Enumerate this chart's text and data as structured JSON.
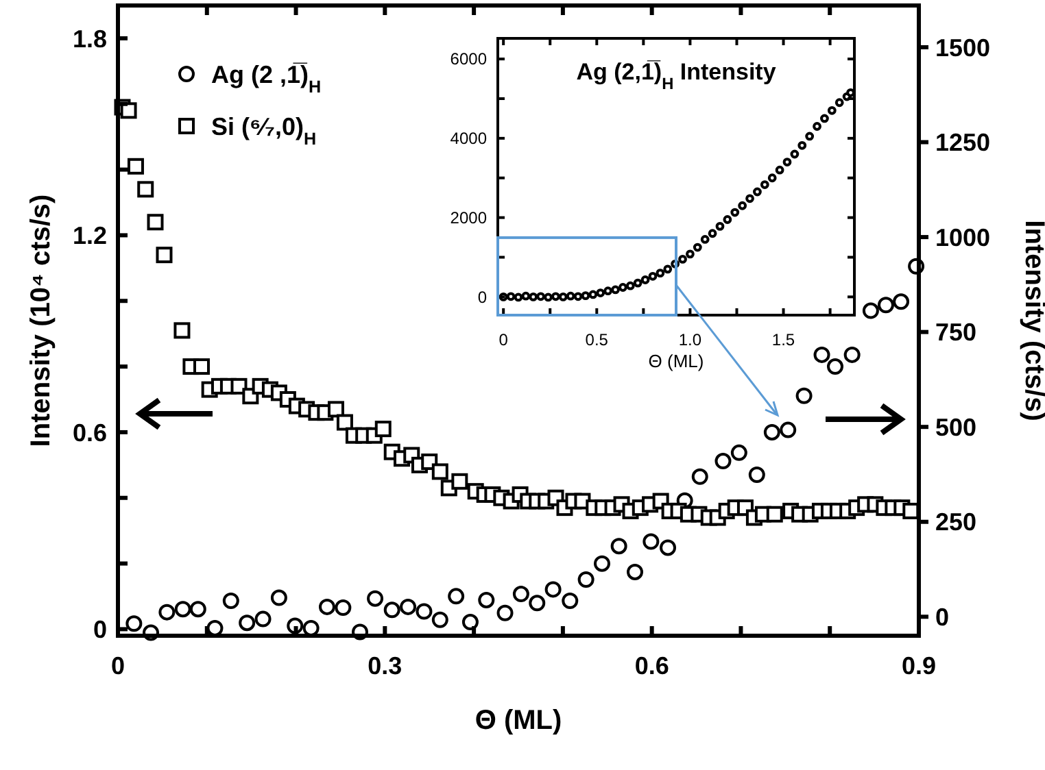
{
  "chart_data": [
    {
      "type": "scatter",
      "xlabel": "Θ (ML)",
      "ylabel": "Intensity (10⁴ cts/s)",
      "y2label": "Intensity (cts/s)",
      "legend": "top left",
      "xlim": [
        0,
        0.9
      ],
      "xticks": [
        0,
        {
          "value": 0.1,
          "label": null
        },
        {
          "value": 0.2,
          "label": null
        },
        0.3,
        {
          "value": 0.4,
          "label": null
        },
        {
          "value": 0.5,
          "label": null
        },
        0.6,
        {
          "value": 0.7,
          "label": null
        },
        {
          "value": 0.8,
          "label": null
        },
        0.9
      ],
      "ylim": [
        -0.02,
        1.9
      ],
      "yticks": [
        0,
        {
          "value": 0.2,
          "label": null
        },
        {
          "value": 0.4,
          "label": null
        },
        0.6,
        {
          "value": 0.8,
          "label": null
        },
        {
          "value": 1.0,
          "label": null
        },
        1.2,
        {
          "value": 1.4,
          "label": null
        },
        {
          "value": 1.6,
          "label": null
        },
        1.8
      ],
      "y2lim": [
        -50,
        1610
      ],
      "y2ticks": [
        0,
        250,
        500,
        750,
        1000,
        1250,
        1500
      ],
      "series": [
        {
          "name": "Ag (2 ,1̅)$_{H}$",
          "color": "#000000",
          "marker": "circle",
          "axis": "y2",
          "x": [
            0.018,
            0.037,
            0.055,
            0.073,
            0.09,
            0.109,
            0.127,
            0.145,
            0.163,
            0.181,
            0.199,
            0.217,
            0.235,
            0.253,
            0.272,
            0.289,
            0.308,
            0.326,
            0.344,
            0.362,
            0.38,
            0.396,
            0.414,
            0.435,
            0.453,
            0.471,
            0.489,
            0.508,
            0.526,
            0.544,
            0.563,
            0.581,
            0.599,
            0.618,
            0.637,
            0.654,
            0.68,
            0.698,
            0.718,
            0.735,
            0.753,
            0.771,
            0.791,
            0.806,
            0.825,
            0.846,
            0.863,
            0.88,
            0.897
          ],
          "values": [
            -18,
            -42,
            12,
            20,
            20,
            -30,
            42,
            -16,
            -6,
            50,
            -24,
            -30,
            26,
            24,
            -40,
            48,
            18,
            26,
            14,
            -8,
            54,
            -14,
            44,
            10,
            60,
            36,
            72,
            42,
            98,
            140,
            186,
            118,
            198,
            182,
            306,
            369,
            410,
            432,
            374,
            486,
            492,
            582,
            690,
            659,
            690,
            806,
            821,
            830,
            923
          ]
        },
        {
          "name": "Si (⁶⁄₇,0)$_{H}$",
          "color": "#000000",
          "marker": "square",
          "x": [
            0.005,
            0.012,
            0.02,
            0.031,
            0.042,
            0.052,
            0.072,
            0.082,
            0.094,
            0.103,
            0.114,
            0.124,
            0.136,
            0.149,
            0.16,
            0.171,
            0.181,
            0.191,
            0.201,
            0.212,
            0.223,
            0.233,
            0.245,
            0.255,
            0.265,
            0.276,
            0.288,
            0.298,
            0.308,
            0.319,
            0.33,
            0.339,
            0.35,
            0.362,
            0.372,
            0.384,
            0.402,
            0.412,
            0.421,
            0.431,
            0.442,
            0.452,
            0.461,
            0.471,
            0.481,
            0.492,
            0.502,
            0.512,
            0.522,
            0.535,
            0.545,
            0.556,
            0.566,
            0.576,
            0.587,
            0.598,
            0.61,
            0.62,
            0.63,
            0.641,
            0.653,
            0.664,
            0.674,
            0.684,
            0.694,
            0.705,
            0.715,
            0.725,
            0.738,
            0.756,
            0.766,
            0.778,
            0.789,
            0.799,
            0.809,
            0.82,
            0.83,
            0.84,
            0.851,
            0.861,
            0.871,
            0.881,
            0.891
          ],
          "values": [
            1.59,
            1.58,
            1.41,
            1.34,
            1.24,
            1.14,
            0.91,
            0.8,
            0.8,
            0.73,
            0.74,
            0.74,
            0.74,
            0.71,
            0.74,
            0.73,
            0.72,
            0.7,
            0.68,
            0.67,
            0.66,
            0.66,
            0.67,
            0.63,
            0.59,
            0.59,
            0.59,
            0.61,
            0.54,
            0.52,
            0.53,
            0.5,
            0.51,
            0.48,
            0.43,
            0.45,
            0.42,
            0.41,
            0.41,
            0.4,
            0.39,
            0.41,
            0.39,
            0.39,
            0.39,
            0.4,
            0.37,
            0.39,
            0.39,
            0.37,
            0.37,
            0.37,
            0.38,
            0.36,
            0.37,
            0.38,
            0.39,
            0.36,
            0.36,
            0.35,
            0.35,
            0.34,
            0.34,
            0.36,
            0.37,
            0.37,
            0.34,
            0.35,
            0.35,
            0.36,
            0.35,
            0.35,
            0.36,
            0.36,
            0.36,
            0.36,
            0.37,
            0.38,
            0.38,
            0.37,
            0.37,
            0.37,
            0.36
          ]
        }
      ]
    },
    {
      "type": "scatter",
      "title": "Ag (2,1̅)$_{H}$ Intensity",
      "xlabel": "Θ (ML)",
      "xlim": [
        -0.03,
        1.88
      ],
      "xticks": [
        0,
        {
          "value": 0.25,
          "label": null
        },
        0.5,
        {
          "value": 0.75,
          "label": null
        },
        {
          "value": 1,
          "label": "1.0"
        },
        {
          "value": 1.25,
          "label": null
        },
        1.5,
        {
          "value": 1.75,
          "label": null
        }
      ],
      "ylim": [
        -460,
        6520
      ],
      "yticks": [
        0,
        {
          "value": 1000,
          "label": null
        },
        2000,
        {
          "value": 3000,
          "label": null
        },
        4000,
        {
          "value": 5000,
          "label": null
        },
        6000
      ],
      "series": [
        {
          "color": "#000000",
          "marker": "circle",
          "x": [
            0,
            0.04,
            0.08,
            0.12,
            0.16,
            0.2,
            0.24,
            0.28,
            0.32,
            0.36,
            0.4,
            0.44,
            0.48,
            0.52,
            0.56,
            0.6,
            0.64,
            0.68,
            0.72,
            0.76,
            0.8,
            0.84,
            0.88,
            0.92,
            0.96,
            1.0,
            1.04,
            1.08,
            1.12,
            1.16,
            1.2,
            1.24,
            1.28,
            1.32,
            1.36,
            1.4,
            1.44,
            1.48,
            1.52,
            1.56,
            1.6,
            1.64,
            1.68,
            1.72,
            1.76,
            1.8,
            1.84,
            1.86
          ],
          "values": [
            0,
            10,
            -10,
            20,
            0,
            10,
            -10,
            10,
            0,
            20,
            10,
            30,
            60,
            100,
            150,
            180,
            240,
            280,
            350,
            430,
            520,
            600,
            700,
            830,
            950,
            1080,
            1250,
            1450,
            1600,
            1780,
            1950,
            2130,
            2300,
            2480,
            2650,
            2830,
            3000,
            3200,
            3400,
            3600,
            3820,
            4050,
            4300,
            4500,
            4700,
            4900,
            5050,
            5150
          ]
        }
      ]
    }
  ]
}
